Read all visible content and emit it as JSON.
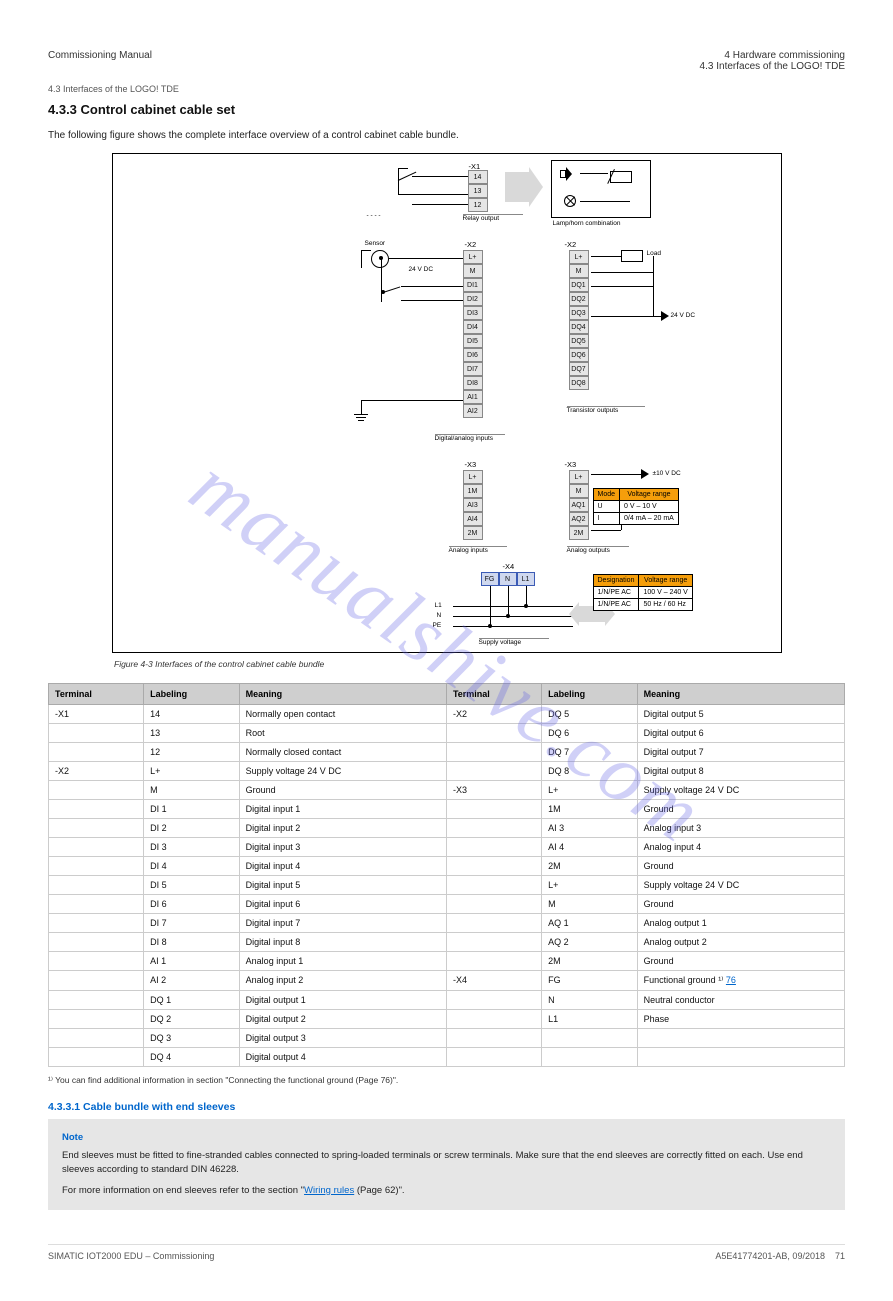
{
  "watermark": "manualshive.com",
  "header": {
    "left": "Commissioning Manual",
    "right_line1": "4 Hardware commissioning",
    "right_line2": "4.3 Interfaces of the LOGO! TDE"
  },
  "crumb": "4.3 Interfaces of the LOGO! TDE",
  "section_title": "4.3.3 Control cabinet cable set",
  "intro": "The following figure shows the complete interface overview of a control cabinet cable bundle.",
  "figure": {
    "caption": "Figure 4-3 Interfaces of the control cabinet cable bundle",
    "x1_group": {
      "title": "-X1",
      "terms": [
        "14",
        "13",
        "12"
      ],
      "label_top": "Lamp/horn combination",
      "underline": "Relay output"
    },
    "icon_box": {
      "speaker": "speaker-icon",
      "lamp": "lamp-icon",
      "relay": "relay-icon"
    },
    "x2_left": {
      "title": "-X2",
      "top_source": "Sensor",
      "terms": [
        "L+",
        "M",
        "DI1",
        "DI2",
        "DI3",
        "DI4",
        "DI5",
        "DI6",
        "DI7",
        "DI8",
        "AI1",
        "AI2"
      ],
      "mid_label": "24 V DC",
      "bottom_label": "Digital/analog inputs"
    },
    "x2_right": {
      "title": "-X2",
      "terms": [
        "L+",
        "M",
        "DQ1",
        "DQ2",
        "DQ3",
        "DQ4",
        "DQ5",
        "DQ6",
        "DQ7",
        "DQ8"
      ],
      "load_label": "Load",
      "out_label": "24 V DC",
      "bottom_label": "Transistor outputs"
    },
    "x3_left": {
      "title": "-X3",
      "terms": [
        "L+",
        "1M",
        "AI3",
        "AI4",
        "2M"
      ],
      "bottom_label": "Analog inputs"
    },
    "x3_right": {
      "title": "-X3",
      "terms": [
        "L+",
        "M",
        "AQ1",
        "AQ2",
        "2M"
      ],
      "bottom_label": "Analog outputs",
      "arrow_label": "±10 V DC"
    },
    "x4": {
      "title": "-X4",
      "terms": [
        "FG",
        "N",
        "L1"
      ],
      "lines": [
        "PE",
        "N",
        "L1"
      ],
      "bottom_label": "Supply voltage"
    },
    "table1": {
      "header": [
        "Mode",
        "Voltage range"
      ],
      "rows": [
        [
          "U",
          "0 V – 10 V"
        ],
        [
          "I",
          "0/4 mA – 20 mA"
        ]
      ]
    },
    "table2": {
      "header": [
        "Designation",
        "Voltage range"
      ],
      "rows": [
        [
          "1/N/PE AC",
          "100 V – 240 V"
        ],
        [
          "1/N/PE AC",
          "50 Hz / 60 Hz"
        ]
      ]
    }
  },
  "spec_table": {
    "headers": [
      "Terminal",
      "Labeling",
      "Meaning",
      "Terminal",
      "Labeling",
      "Meaning"
    ],
    "rows": [
      [
        "-X1",
        "14",
        "Normally open contact",
        "-X2",
        "DQ 5",
        "Digital output 5"
      ],
      [
        "",
        "13",
        "Root",
        "",
        "DQ 6",
        "Digital output 6"
      ],
      [
        "",
        "12",
        "Normally closed contact",
        "",
        "DQ 7",
        "Digital output 7"
      ],
      [
        "-X2",
        "L+",
        "Supply voltage 24 V DC",
        "",
        "DQ 8",
        "Digital output 8"
      ],
      [
        "",
        "M",
        "Ground",
        "-X3",
        "L+",
        "Supply voltage 24 V DC"
      ],
      [
        "",
        "DI 1",
        "Digital input 1",
        "",
        "1M",
        "Ground"
      ],
      [
        "",
        "DI 2",
        "Digital input 2",
        "",
        "AI 3",
        "Analog input 3"
      ],
      [
        "",
        "DI 3",
        "Digital input 3",
        "",
        "AI 4",
        "Analog input 4"
      ],
      [
        "",
        "DI 4",
        "Digital input 4",
        "",
        "2M",
        "Ground"
      ],
      [
        "",
        "DI 5",
        "Digital input 5",
        "",
        "L+",
        "Supply voltage 24 V DC"
      ],
      [
        "",
        "DI 6",
        "Digital input 6",
        "",
        "M",
        "Ground"
      ],
      [
        "",
        "DI 7",
        "Digital input 7",
        "",
        "AQ 1",
        "Analog output 1"
      ],
      [
        "",
        "DI 8",
        "Digital input 8",
        "",
        "AQ 2",
        "Analog output 2"
      ],
      [
        "",
        "AI 1",
        "Analog input 1",
        "",
        "2M",
        "Ground"
      ],
      [
        "",
        "AI 2",
        "Analog input 2",
        "-X4",
        "FG",
        "Functional ground ¹⁾"
      ],
      [
        "",
        "DQ 1",
        "Digital output 1",
        "",
        "N",
        "Neutral conductor"
      ],
      [
        "",
        "DQ 2",
        "Digital output 2",
        "",
        "L1",
        "Phase"
      ],
      [
        "",
        "DQ 3",
        "Digital output 3",
        "",
        "",
        ""
      ],
      [
        "",
        "DQ 4",
        "Digital output 4",
        "",
        "",
        ""
      ]
    ],
    "footnote": "¹⁾ You can find additional information in section \"Connecting the functional ground (Page 76)\".",
    "footnote_link": "76"
  },
  "subsection": {
    "title": "4.3.3.1 Cable bundle with end sleeves",
    "note_title": "Note",
    "note_body1": "End sleeves must be fitted to fine-stranded cables connected to spring-loaded terminals or screw terminals. Make sure that the end sleeves are correctly fitted on each. Use end sleeves according to standard DIN 46228.",
    "note_body2": "For more information on end sleeves refer to the section \"",
    "note_link_text": "Wiring rules",
    "note_body3": " (Page 62)\"."
  },
  "footer": {
    "left": "SIMATIC IOT2000 EDU – Commissioning",
    "center": "",
    "right_line1": "71",
    "right_line2": "A5E41774201-AB, 09/2018"
  },
  "colors": {
    "accent_orange": "#f59e0b",
    "header_gray": "#cfcfcf",
    "note_bg": "#e6e6e6",
    "link": "#0066cc"
  }
}
